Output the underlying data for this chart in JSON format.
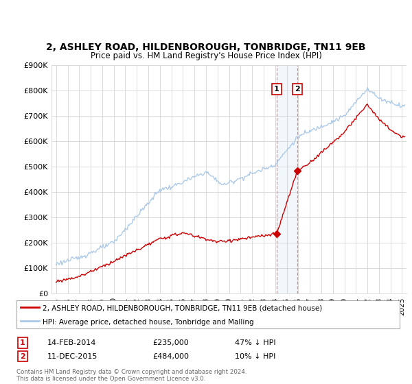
{
  "title": "2, ASHLEY ROAD, HILDENBOROUGH, TONBRIDGE, TN11 9EB",
  "subtitle": "Price paid vs. HM Land Registry's House Price Index (HPI)",
  "ylim": [
    0,
    900000
  ],
  "yticks": [
    0,
    100000,
    200000,
    300000,
    400000,
    500000,
    600000,
    700000,
    800000,
    900000
  ],
  "ytick_labels": [
    "£0",
    "£100K",
    "£200K",
    "£300K",
    "£400K",
    "£500K",
    "£600K",
    "£700K",
    "£800K",
    "£900K"
  ],
  "hpi_color": "#a8c8e8",
  "price_color": "#cc0000",
  "sale1": {
    "date": "14-FEB-2014",
    "price": 235000,
    "label": "47% ↓ HPI",
    "year": 2014.12
  },
  "sale2": {
    "date": "11-DEC-2015",
    "price": 484000,
    "label": "10% ↓ HPI",
    "year": 2015.92
  },
  "footer": "Contains HM Land Registry data © Crown copyright and database right 2024.\nThis data is licensed under the Open Government Licence v3.0.",
  "legend_line1": "2, ASHLEY ROAD, HILDENBOROUGH, TONBRIDGE, TN11 9EB (detached house)",
  "legend_line2": "HPI: Average price, detached house, Tonbridge and Malling",
  "background_color": "#ffffff",
  "grid_color": "#cccccc",
  "xlim_left": 1994.6,
  "xlim_right": 2025.4
}
